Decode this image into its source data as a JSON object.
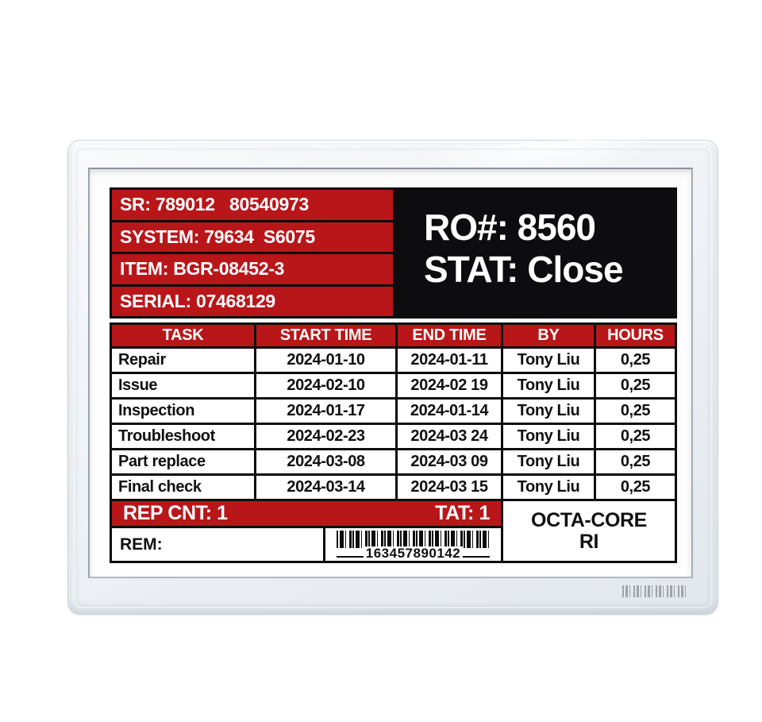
{
  "colors": {
    "accent_red": "#b9161a",
    "block_black": "#0d0d0f",
    "bezel": "#eff2f6"
  },
  "header": {
    "info_rows": [
      "SR: 789012   80540973",
      "SYSTEM: 79634  S6075",
      "ITEM: BGR-08452-3",
      "SERIAL: 07468129"
    ],
    "ro_line": "RO#: 8560",
    "stat_line": "STAT: Close"
  },
  "table": {
    "columns": [
      "TASK",
      "START TIME",
      "END TIME",
      "BY",
      "HOURS"
    ],
    "rows": [
      {
        "task": "Repair",
        "start": "2024-01-10",
        "end": "2024-01-11",
        "by": "Tony Liu",
        "hours": "0,25"
      },
      {
        "task": "Issue",
        "start": "2024-02-10",
        "end": "2024-02 19",
        "by": "Tony Liu",
        "hours": "0,25"
      },
      {
        "task": "Inspection",
        "start": "2024-01-17",
        "end": "2024-01-14",
        "by": "Tony Liu",
        "hours": "0,25"
      },
      {
        "task": "Troubleshoot",
        "start": "2024-02-23",
        "end": "2024-03 24",
        "by": "Tony Liu",
        "hours": "0,25"
      },
      {
        "task": "Part replace",
        "start": "2024-03-08",
        "end": "2024-03 09",
        "by": "Tony Liu",
        "hours": "0,25"
      },
      {
        "task": "Final check",
        "start": "2024-03-14",
        "end": "2024-03 15",
        "by": "Tony Liu",
        "hours": "0,25"
      }
    ]
  },
  "footer": {
    "rep_cnt": "REP CNT: 1",
    "tat": "TAT: 1",
    "core_line1": "OCTA-CORE",
    "core_line2": "RI",
    "rem": "REM:",
    "barcode_value": "163457890142"
  },
  "icons": {
    "display_barcode": "barcode-icon",
    "bezel_barcode": "barcode-icon"
  }
}
